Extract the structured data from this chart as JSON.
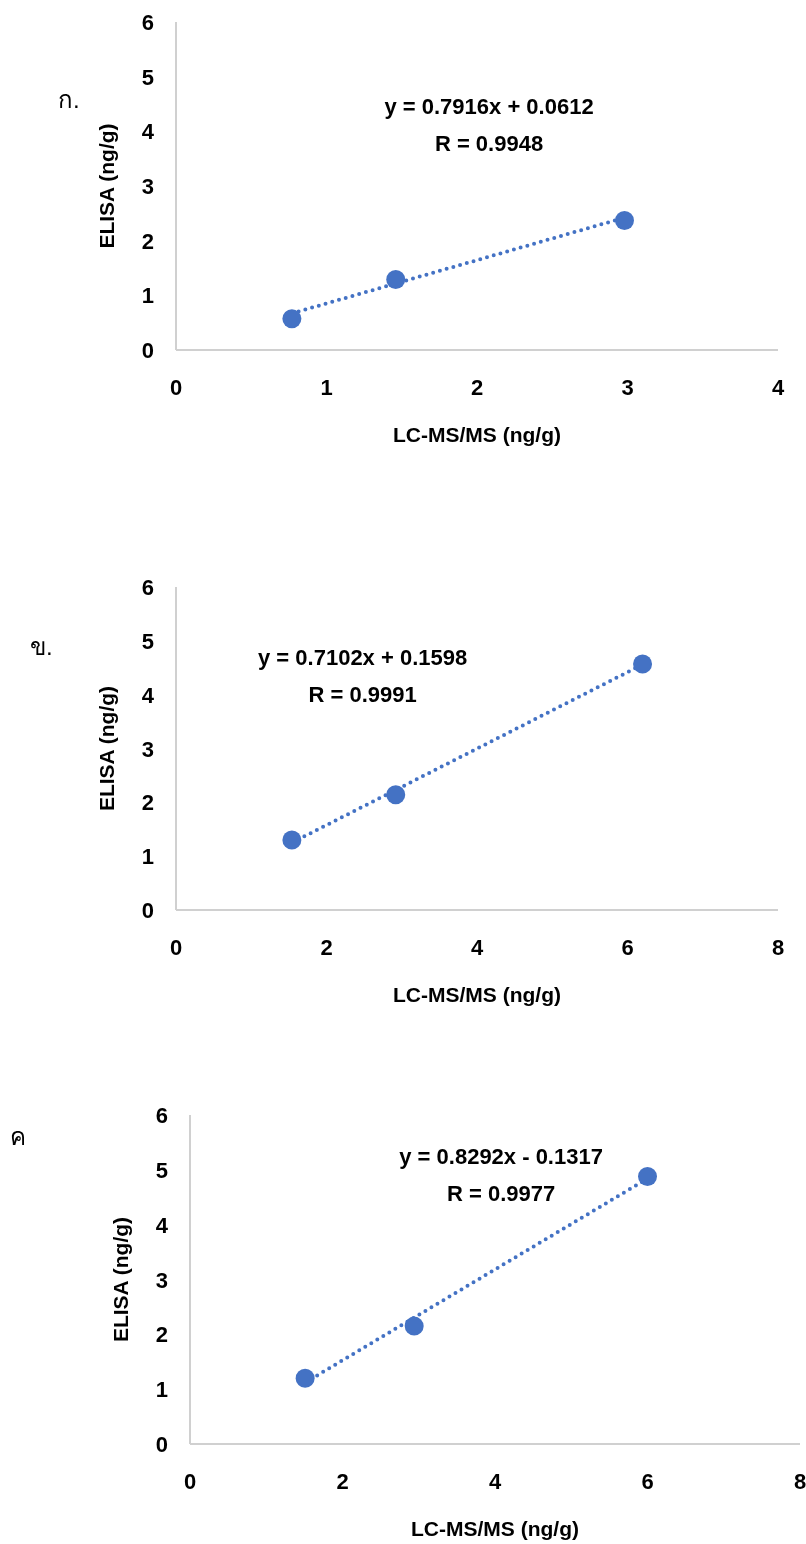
{
  "chart_data": [
    {
      "type": "scatter",
      "title": "ก.",
      "xlabel": "LC-MS/MS (ng/g)",
      "ylabel": "ELISA (ng/g)",
      "annotations": [
        "y = 0.7916x + 0.0612",
        "R = 0.9948"
      ],
      "xlim": [
        0,
        4
      ],
      "ylim": [
        0,
        6
      ],
      "xticks": [
        0,
        1,
        2,
        3,
        4
      ],
      "yticks": [
        0,
        1,
        2,
        3,
        4,
        5,
        6
      ],
      "grid": false,
      "marker": "circle",
      "series": [
        {
          "type": "scatter",
          "color": "#4472c4",
          "x": [
            0.77,
            1.46,
            2.98
          ],
          "values": [
            0.57,
            1.29,
            2.37
          ]
        },
        {
          "type": "line",
          "color": "#4472c4",
          "line_style": "dotted",
          "marker": "none",
          "x": [
            0.77,
            2.98
          ],
          "values": [
            0.67,
            2.42
          ]
        }
      ]
    },
    {
      "type": "scatter",
      "title": "ข.",
      "xlabel": "LC-MS/MS (ng/g)",
      "ylabel": "ELISA (ng/g)",
      "annotations": [
        "y = 0.7102x + 0.1598",
        "R = 0.9991"
      ],
      "xlim": [
        0,
        8
      ],
      "ylim": [
        0,
        6
      ],
      "xticks": [
        0,
        2,
        4,
        6,
        8
      ],
      "yticks": [
        0,
        1,
        2,
        3,
        4,
        5,
        6
      ],
      "grid": false,
      "marker": "circle",
      "series": [
        {
          "type": "scatter",
          "color": "#4472c4",
          "x": [
            1.54,
            2.92,
            6.2
          ],
          "values": [
            1.3,
            2.14,
            4.57
          ]
        },
        {
          "type": "line",
          "color": "#4472c4",
          "line_style": "dotted",
          "marker": "none",
          "x": [
            1.54,
            6.2
          ],
          "values": [
            1.25,
            4.56
          ]
        }
      ]
    },
    {
      "type": "scatter",
      "title": "ค",
      "xlabel": "LC-MS/MS (ng/g)",
      "ylabel": "ELISA (ng/g)",
      "annotations": [
        "y = 0.8292x - 0.1317",
        "R = 0.9977"
      ],
      "xlim": [
        0,
        8
      ],
      "ylim": [
        0,
        6
      ],
      "xticks": [
        0,
        2,
        4,
        6,
        8
      ],
      "yticks": [
        0,
        1,
        2,
        3,
        4,
        5,
        6
      ],
      "grid": false,
      "marker": "circle",
      "series": [
        {
          "type": "scatter",
          "color": "#4472c4",
          "x": [
            1.51,
            2.94,
            6.0
          ],
          "values": [
            1.2,
            2.15,
            4.88
          ]
        },
        {
          "type": "line",
          "color": "#4472c4",
          "line_style": "dotted",
          "marker": "none",
          "x": [
            1.51,
            6.0
          ],
          "values": [
            1.12,
            4.84
          ]
        }
      ]
    }
  ]
}
